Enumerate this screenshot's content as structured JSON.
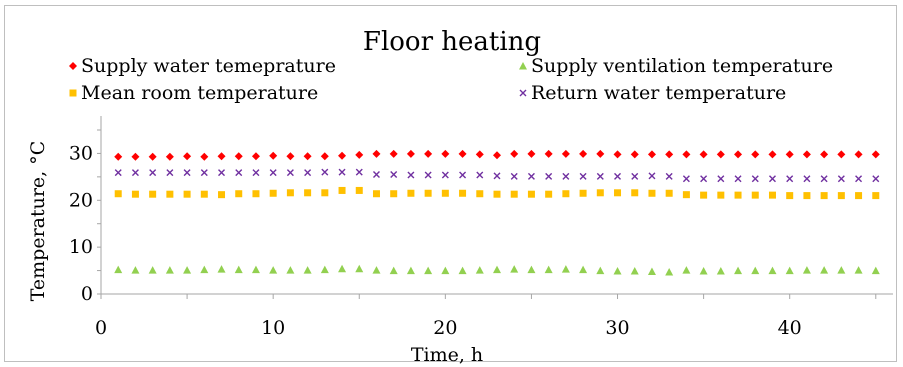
{
  "chart_data": {
    "type": "scatter",
    "title": "Floor heating",
    "xlabel": "Time, h",
    "ylabel": "Temperature, °C",
    "xlim": [
      0,
      46
    ],
    "ylim": [
      0,
      35
    ],
    "xticks": [
      0,
      10,
      20,
      30,
      40
    ],
    "yticks": [
      0,
      10,
      20,
      30
    ],
    "grid": false,
    "legend_position": "top",
    "x": [
      1,
      2,
      3,
      4,
      5,
      6,
      7,
      8,
      9,
      10,
      11,
      12,
      13,
      14,
      15,
      16,
      17,
      18,
      19,
      20,
      21,
      22,
      23,
      24,
      25,
      26,
      27,
      28,
      29,
      30,
      31,
      32,
      33,
      34,
      35,
      36,
      37,
      38,
      39,
      40,
      41,
      42,
      43,
      44,
      45
    ],
    "series": [
      {
        "name": "Supply water temeprature",
        "marker": "diamond",
        "color": "#ff0000",
        "values": [
          29.3,
          29.3,
          29.3,
          29.3,
          29.4,
          29.3,
          29.4,
          29.4,
          29.4,
          29.5,
          29.4,
          29.4,
          29.4,
          29.5,
          29.7,
          29.9,
          29.9,
          29.9,
          29.9,
          29.9,
          29.9,
          29.8,
          29.6,
          29.9,
          29.9,
          29.9,
          29.9,
          29.9,
          29.9,
          29.8,
          29.8,
          29.8,
          29.8,
          29.8,
          29.8,
          29.8,
          29.8,
          29.8,
          29.8,
          29.8,
          29.8,
          29.8,
          29.8,
          29.8,
          29.8
        ]
      },
      {
        "name": "Supply ventilation temperature",
        "marker": "triangle",
        "color": "#92d050",
        "values": [
          5.2,
          5.1,
          5.1,
          5.1,
          5.1,
          5.2,
          5.3,
          5.2,
          5.2,
          5.1,
          5.1,
          5.1,
          5.2,
          5.4,
          5.4,
          5.1,
          5.0,
          5.0,
          5.0,
          5.0,
          5.0,
          5.1,
          5.2,
          5.3,
          5.2,
          5.2,
          5.3,
          5.2,
          5.0,
          4.9,
          4.9,
          4.8,
          4.7,
          5.1,
          4.9,
          4.9,
          5.0,
          5.0,
          5.0,
          5.0,
          5.1,
          5.1,
          5.1,
          5.1,
          5.0
        ]
      },
      {
        "name": "Mean room temperature",
        "marker": "square",
        "color": "#ffc000",
        "values": [
          21.4,
          21.3,
          21.3,
          21.3,
          21.3,
          21.3,
          21.2,
          21.4,
          21.4,
          21.5,
          21.6,
          21.6,
          21.6,
          22.1,
          22.1,
          21.4,
          21.4,
          21.5,
          21.5,
          21.5,
          21.5,
          21.4,
          21.3,
          21.3,
          21.3,
          21.3,
          21.4,
          21.5,
          21.6,
          21.6,
          21.6,
          21.5,
          21.5,
          21.2,
          21.1,
          21.1,
          21.1,
          21.1,
          21.1,
          21.0,
          21.0,
          21.0,
          21.0,
          21.0,
          21.0
        ]
      },
      {
        "name": "Return water temperature",
        "marker": "x",
        "color": "#7030a0",
        "values": [
          25.9,
          25.9,
          25.9,
          25.9,
          25.9,
          25.9,
          25.9,
          25.9,
          25.9,
          25.9,
          25.9,
          25.9,
          26.0,
          26.0,
          26.0,
          25.5,
          25.5,
          25.4,
          25.4,
          25.4,
          25.4,
          25.4,
          25.2,
          25.1,
          25.1,
          25.1,
          25.1,
          25.1,
          25.1,
          25.1,
          25.1,
          25.2,
          25.1,
          24.6,
          24.6,
          24.6,
          24.6,
          24.6,
          24.6,
          24.6,
          24.6,
          24.6,
          24.6,
          24.6,
          24.6
        ]
      }
    ]
  }
}
